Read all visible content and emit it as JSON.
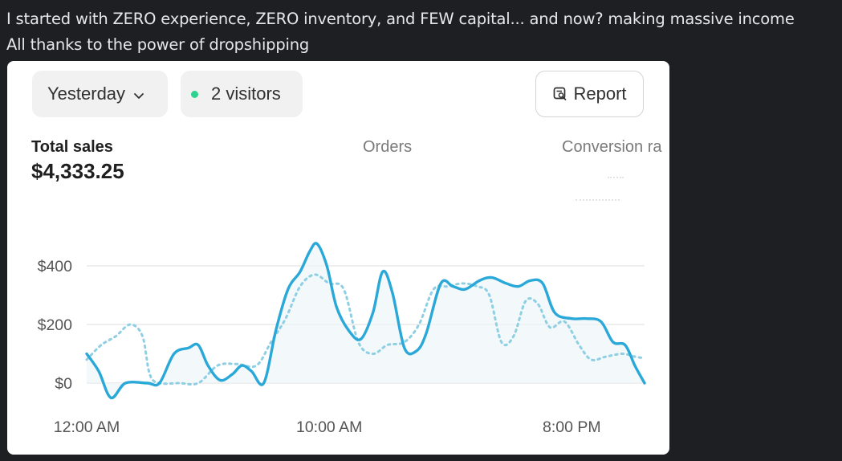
{
  "message": {
    "line1": "I started with ZERO experience, ZERO inventory, and FEW capital... and now? making massive income",
    "line2": "All thanks to the power of dropshipping"
  },
  "card": {
    "date_filter": {
      "label": "Yesterday",
      "icon": "chevron-down-icon"
    },
    "visitors": {
      "label": "2 visitors",
      "dot_color": "#2fd38f"
    },
    "report_button": {
      "label": "Report",
      "icon": "report-icon"
    },
    "metrics": {
      "total_sales": {
        "label": "Total sales",
        "value": "$4,333.25"
      },
      "orders": {
        "label": "Orders"
      },
      "conversion": {
        "label": "Conversion ra"
      }
    }
  },
  "chart_data": {
    "type": "line",
    "ylim": [
      0,
      480
    ],
    "grid": true,
    "y_ticks": [
      {
        "value": 0,
        "label": "$0"
      },
      {
        "value": 200,
        "label": "$200"
      },
      {
        "value": 400,
        "label": "$400"
      }
    ],
    "x_ticks": [
      {
        "hour": 0,
        "label": "12:00 AM"
      },
      {
        "hour": 10,
        "label": "10:00 AM"
      },
      {
        "hour": 20,
        "label": "8:00 PM"
      }
    ],
    "series": [
      {
        "style": "solid",
        "color": "#2aa8d8",
        "points": [
          [
            0,
            100
          ],
          [
            0.5,
            40
          ],
          [
            1,
            -50
          ],
          [
            1.6,
            0
          ],
          [
            2.5,
            0
          ],
          [
            3,
            0
          ],
          [
            3.6,
            100
          ],
          [
            4.2,
            120
          ],
          [
            4.6,
            130
          ],
          [
            5,
            60
          ],
          [
            5.5,
            10
          ],
          [
            6,
            30
          ],
          [
            6.4,
            60
          ],
          [
            6.8,
            40
          ],
          [
            7.3,
            0
          ],
          [
            7.8,
            180
          ],
          [
            8.3,
            320
          ],
          [
            8.8,
            380
          ],
          [
            9.2,
            450
          ],
          [
            9.5,
            475
          ],
          [
            9.9,
            400
          ],
          [
            10.3,
            260
          ],
          [
            10.8,
            180
          ],
          [
            11.3,
            150
          ],
          [
            11.8,
            240
          ],
          [
            12.2,
            380
          ],
          [
            12.6,
            310
          ],
          [
            13.1,
            120
          ],
          [
            13.6,
            110
          ],
          [
            14,
            170
          ],
          [
            14.6,
            340
          ],
          [
            15.1,
            330
          ],
          [
            15.6,
            320
          ],
          [
            16.2,
            350
          ],
          [
            16.7,
            360
          ],
          [
            17.3,
            340
          ],
          [
            17.8,
            330
          ],
          [
            18.3,
            350
          ],
          [
            18.8,
            340
          ],
          [
            19.3,
            240
          ],
          [
            20,
            220
          ],
          [
            20.6,
            220
          ],
          [
            21.2,
            210
          ],
          [
            21.7,
            140
          ],
          [
            22.2,
            130
          ],
          [
            22.6,
            60
          ],
          [
            23,
            0
          ]
        ]
      },
      {
        "style": "dotted",
        "color": "#8fcfe3",
        "points": [
          [
            0,
            80
          ],
          [
            0.6,
            130
          ],
          [
            1.2,
            160
          ],
          [
            1.8,
            200
          ],
          [
            2.3,
            160
          ],
          [
            2.6,
            30
          ],
          [
            3,
            0
          ],
          [
            3.8,
            0
          ],
          [
            4.6,
            0
          ],
          [
            5.4,
            60
          ],
          [
            6.2,
            65
          ],
          [
            7,
            60
          ],
          [
            7.6,
            140
          ],
          [
            8.2,
            220
          ],
          [
            8.8,
            330
          ],
          [
            9.4,
            370
          ],
          [
            10,
            340
          ],
          [
            10.6,
            320
          ],
          [
            11.2,
            140
          ],
          [
            11.8,
            100
          ],
          [
            12.4,
            130
          ],
          [
            13.1,
            140
          ],
          [
            13.7,
            200
          ],
          [
            14.3,
            320
          ],
          [
            14.9,
            330
          ],
          [
            15.5,
            340
          ],
          [
            16.1,
            330
          ],
          [
            16.6,
            300
          ],
          [
            17.1,
            140
          ],
          [
            17.6,
            160
          ],
          [
            18.1,
            280
          ],
          [
            18.6,
            270
          ],
          [
            19.1,
            190
          ],
          [
            19.7,
            210
          ],
          [
            20.3,
            130
          ],
          [
            20.8,
            80
          ],
          [
            21.4,
            90
          ],
          [
            22.1,
            100
          ],
          [
            22.6,
            90
          ],
          [
            23,
            85
          ]
        ]
      }
    ]
  }
}
